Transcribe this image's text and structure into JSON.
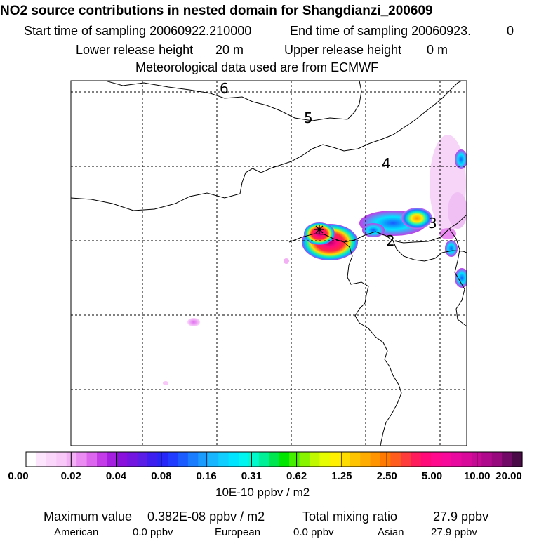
{
  "header": {
    "title": "NO2 source contributions in nested domain for Shangdianzi_200609",
    "start_label": "Start time of sampling 20060922.210000",
    "end_label": "End time of sampling 20060923.",
    "end_value": "0",
    "lower_label": "Lower release height",
    "lower_value": "20 m",
    "upper_label": "Upper release height",
    "upper_value": "0 m",
    "met_label": "Meteorological data used are from ECMWF"
  },
  "map": {
    "contour_labels": [
      "6",
      "5",
      "4",
      "3",
      "2"
    ]
  },
  "colorbar": {
    "tick_labels": [
      "0.00",
      "0.02",
      "0.04",
      "0.08",
      "0.16",
      "0.31",
      "0.62",
      "1.25",
      "2.50",
      "5.00",
      "10.00",
      "20.00"
    ],
    "unit_label": "10E-10 ppbv / m2",
    "colors": [
      "#ffffff",
      "#fde6fd",
      "#fbd6fb",
      "#f8c8f8",
      "#f3b0f5",
      "#ea8cf2",
      "#dd66ee",
      "#c43be8",
      "#a51fe0",
      "#8a10dc",
      "#7316e0",
      "#5a1ee6",
      "#3d1ff0",
      "#2626f8",
      "#1f3cff",
      "#1a5cff",
      "#1a7cff",
      "#1a9cff",
      "#18b6ff",
      "#10ceff",
      "#00e4ff",
      "#00f4f0",
      "#00f8cc",
      "#00f098",
      "#00e650",
      "#00e600",
      "#44f000",
      "#88f400",
      "#c0f800",
      "#e6fc00",
      "#fff000",
      "#ffdc00",
      "#ffc400",
      "#ffac00",
      "#ff9400",
      "#ff7a00",
      "#ff5c1e",
      "#ff3c3c",
      "#ff1c5c",
      "#ff0a78",
      "#ff0a8c",
      "#f70a9a",
      "#e80a9e",
      "#d80a9a",
      "#c50a94",
      "#b00a8c",
      "#960a7e",
      "#700a66",
      "#4a0a48"
    ]
  },
  "footer": {
    "max_label": "Maximum value",
    "max_value": "0.382E-08 ppbv / m2",
    "total_label": "Total mixing ratio",
    "total_value": "27.9 ppbv",
    "american_label": "American",
    "american_value": "0.0 ppbv",
    "european_label": "European",
    "european_value": "0.0 ppbv",
    "asian_label": "Asian",
    "asian_value": "27.9 ppbv"
  },
  "chart_data": {
    "type": "heatmap",
    "title": "NO2 source contributions in nested domain for Shangdianzi_200609",
    "colorbar_ticks": [
      0.0,
      0.02,
      0.04,
      0.08,
      0.16,
      0.31,
      0.62,
      1.25,
      2.5,
      5.0,
      10.0,
      20.0
    ],
    "colorbar_unit": "10E-10 ppbv / m2",
    "maximum_value": "0.382E-08 ppbv / m2",
    "total_mixing_ratio_ppbv": 27.9,
    "contributions_ppbv": {
      "American": 0.0,
      "European": 0.0,
      "Asian": 27.9
    },
    "grid": true,
    "legend_placement": "bottom"
  }
}
